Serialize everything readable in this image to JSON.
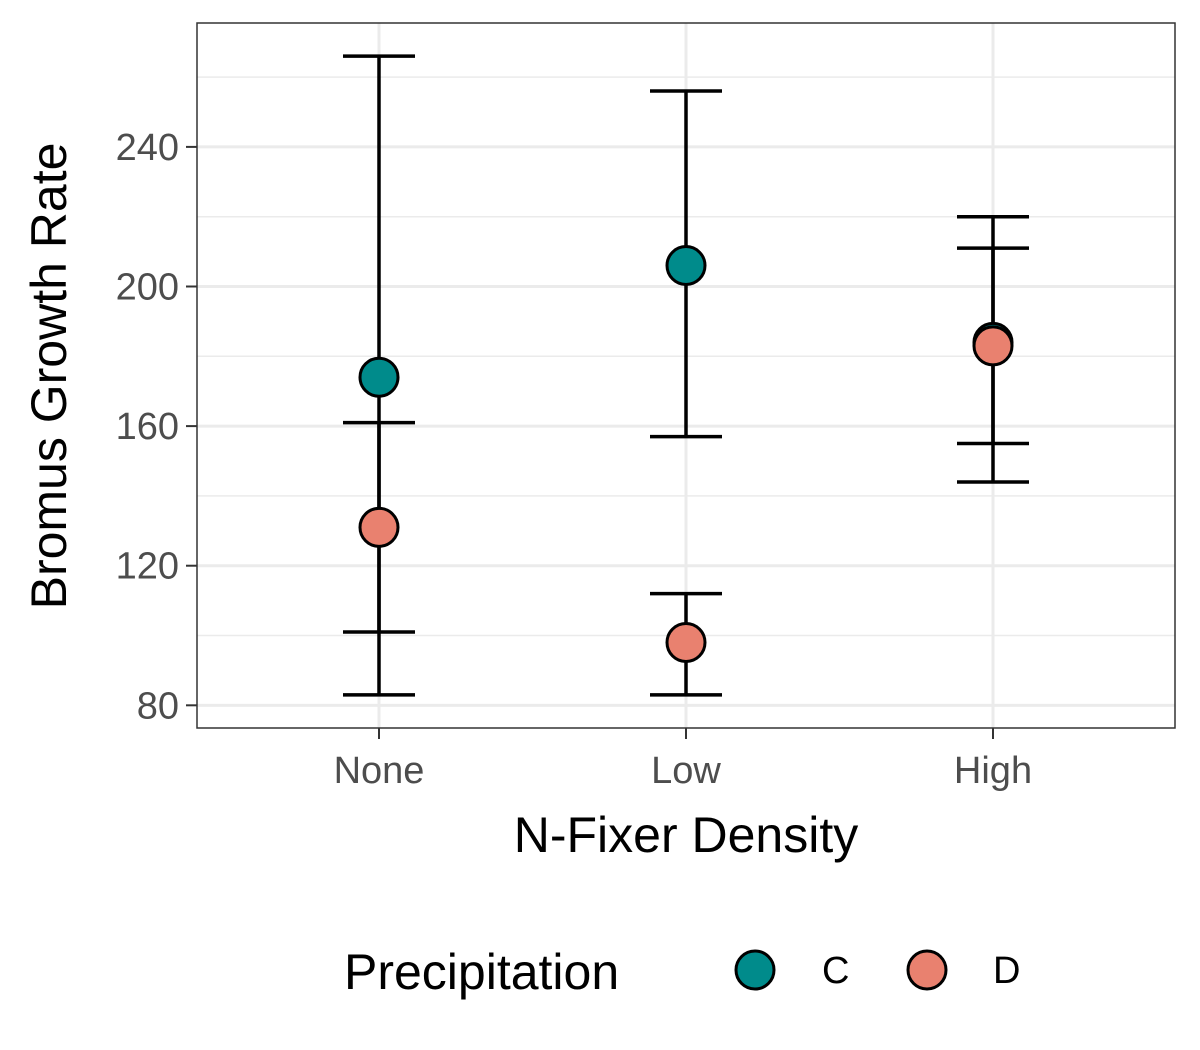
{
  "chart_data": {
    "type": "scatter",
    "xlabel": "N-Fixer Density",
    "ylabel": "Bromus Growth Rate",
    "categories": [
      "None",
      "Low",
      "High"
    ],
    "y_ticks": [
      80,
      120,
      160,
      200,
      240
    ],
    "ylim": [
      73.5,
      275.5
    ],
    "grid": true,
    "legend": {
      "title": "Precipitation",
      "placement": "bottom"
    },
    "series": [
      {
        "name": "C",
        "color": "#008B8B",
        "points": [
          {
            "x": "None",
            "y": 174,
            "ymin": 83,
            "ymax": 266
          },
          {
            "x": "Low",
            "y": 206,
            "ymin": 157,
            "ymax": 256
          },
          {
            "x": "High",
            "y": 184,
            "ymin": 144,
            "ymax": 220
          }
        ]
      },
      {
        "name": "D",
        "color": "#E9816F",
        "points": [
          {
            "x": "None",
            "y": 131,
            "ymin": 101,
            "ymax": 161
          },
          {
            "x": "Low",
            "y": 98,
            "ymin": 83,
            "ymax": 112
          },
          {
            "x": "High",
            "y": 183,
            "ymin": 155,
            "ymax": 211
          }
        ]
      }
    ]
  }
}
